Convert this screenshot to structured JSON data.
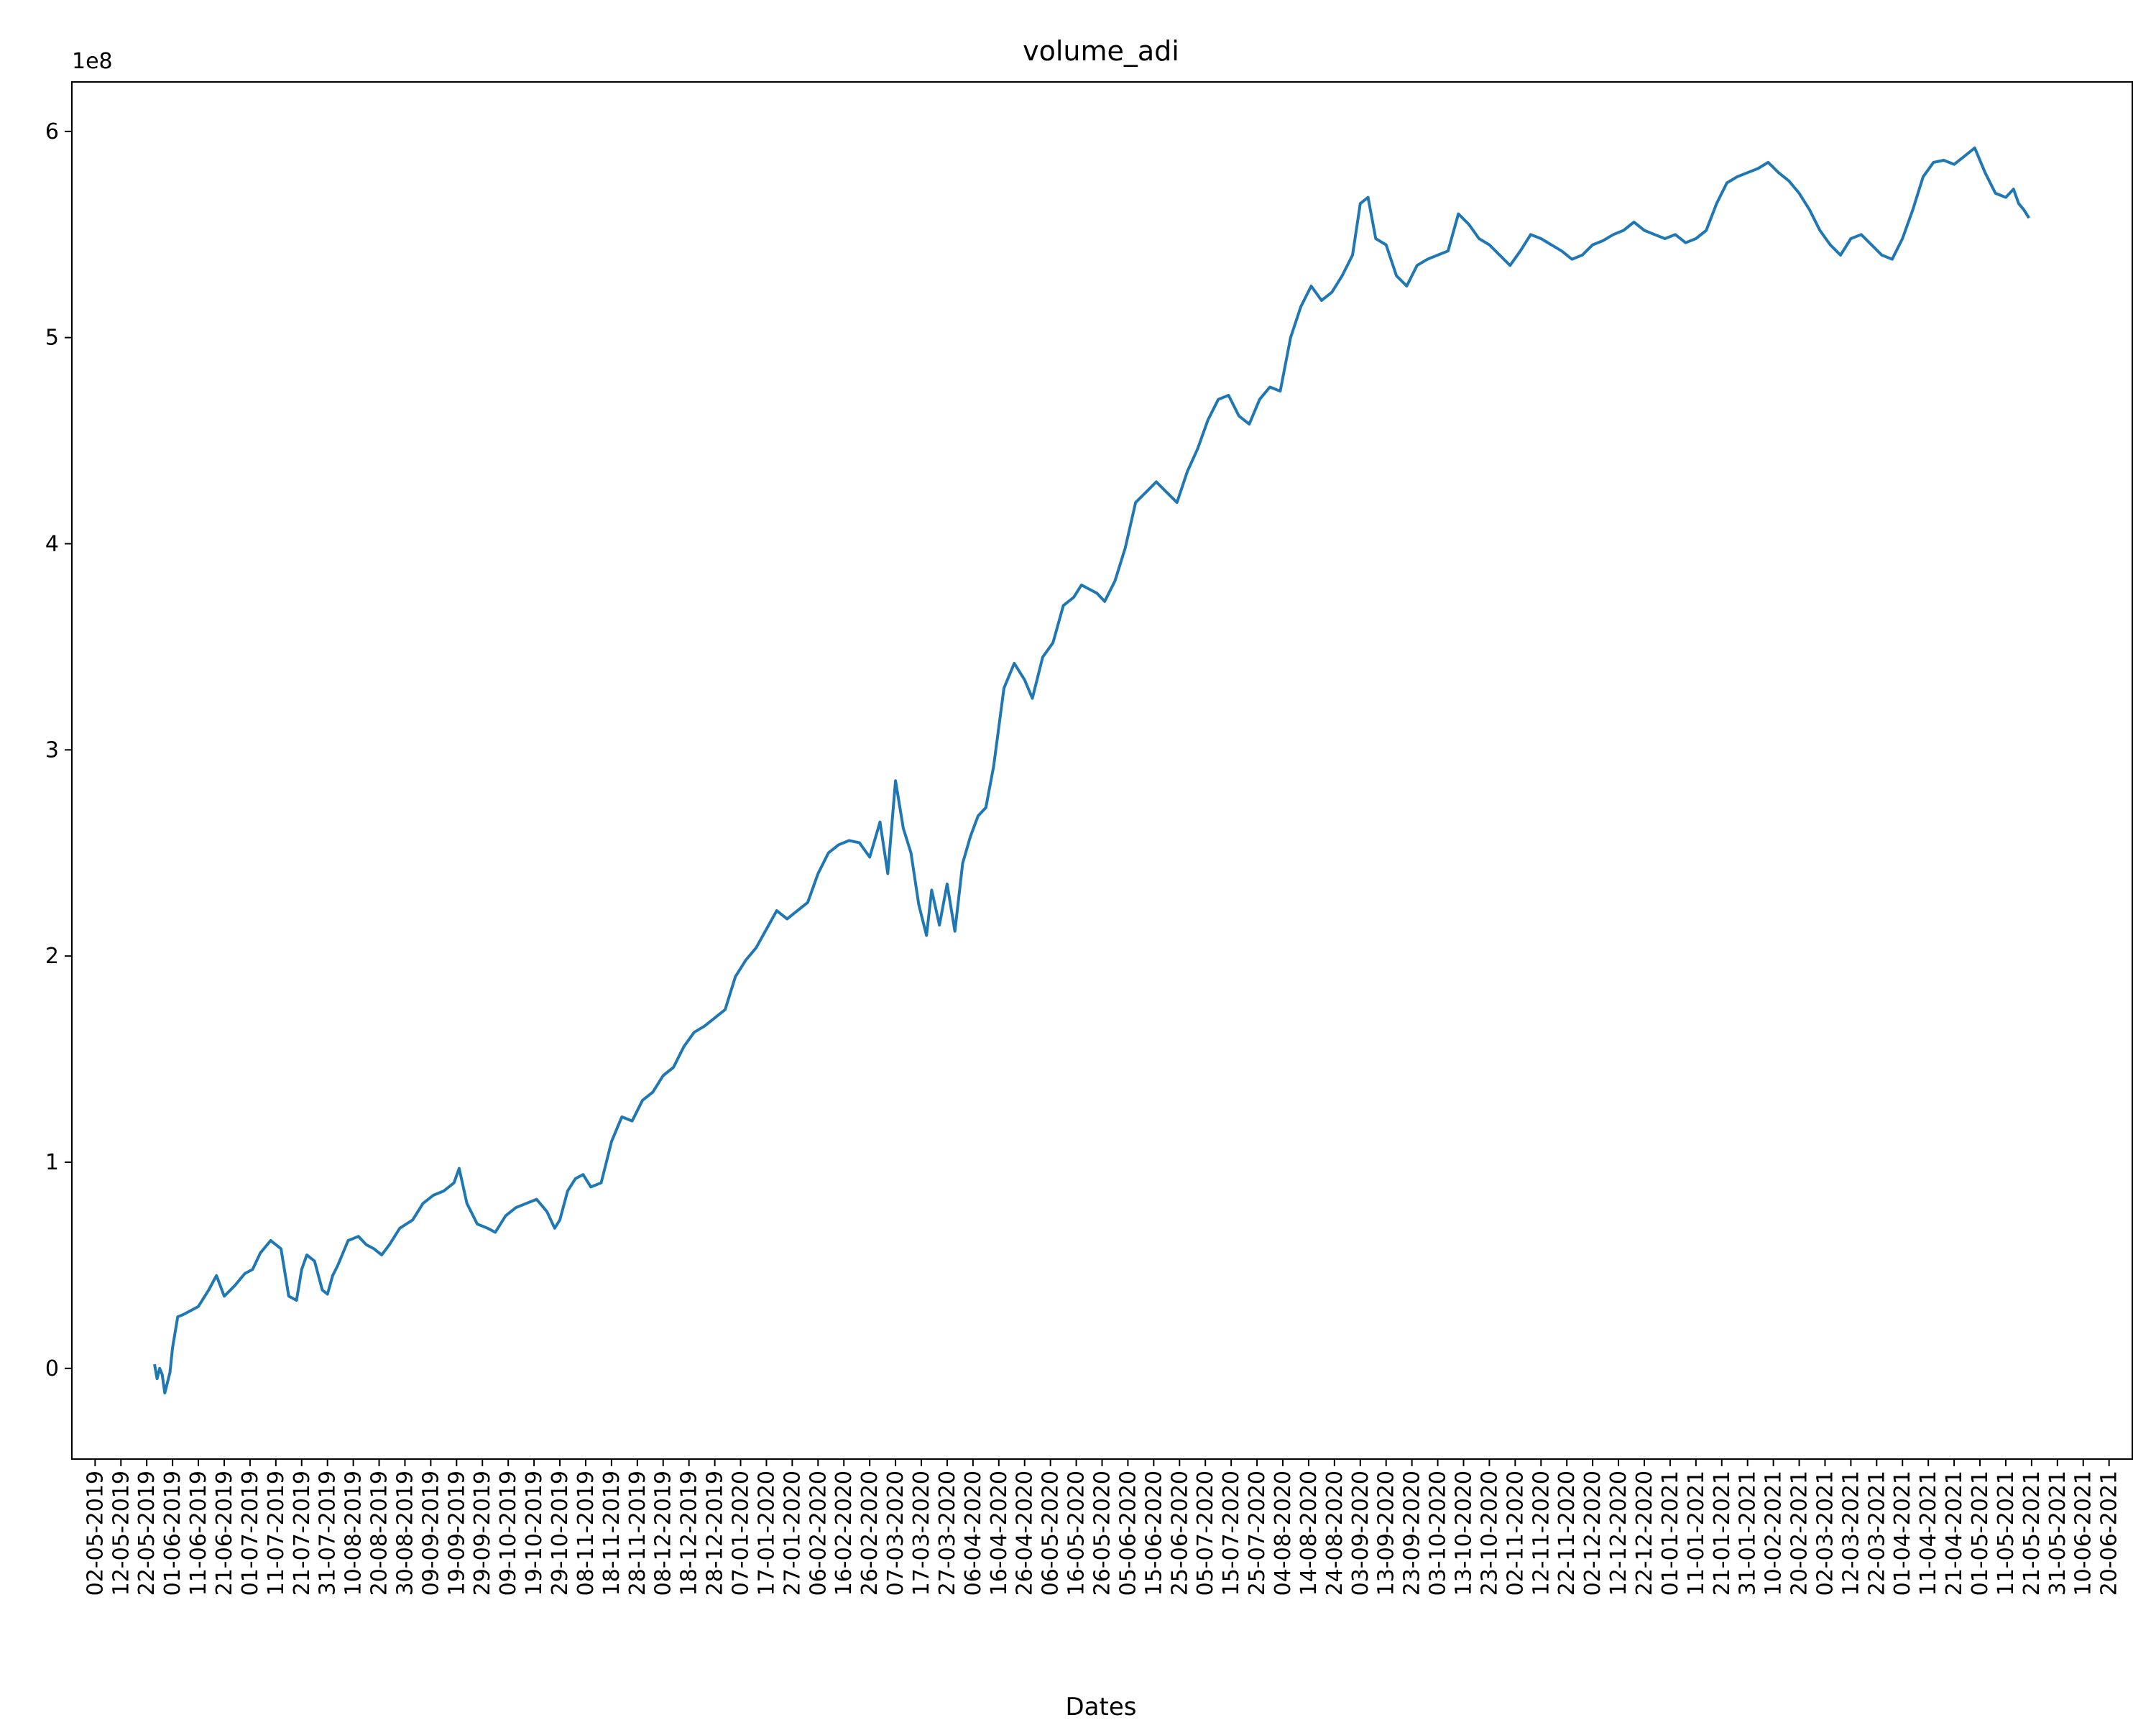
{
  "chart_data": {
    "type": "line",
    "title": "volume_adi",
    "xlabel": "Dates",
    "ylabel": "",
    "y_offset_label": "1e8",
    "y_scale": 100000000,
    "ylim": [
      -44000000,
      624000000
    ],
    "xlim": [
      "2019-04-23",
      "2021-06-29"
    ],
    "grid": false,
    "legend": "none",
    "line_color": "#1f77b4",
    "y_ticks": [
      0,
      100000000,
      200000000,
      300000000,
      400000000,
      500000000,
      600000000
    ],
    "y_tick_labels": [
      "0",
      "1",
      "2",
      "3",
      "4",
      "5",
      "6"
    ],
    "x_ticks": [
      "2019-05-02",
      "2019-05-12",
      "2019-05-22",
      "2019-06-01",
      "2019-06-11",
      "2019-06-21",
      "2019-07-01",
      "2019-07-11",
      "2019-07-21",
      "2019-07-31",
      "2019-08-10",
      "2019-08-20",
      "2019-08-30",
      "2019-09-09",
      "2019-09-19",
      "2019-09-29",
      "2019-10-09",
      "2019-10-19",
      "2019-10-29",
      "2019-11-08",
      "2019-11-18",
      "2019-11-28",
      "2019-12-08",
      "2019-12-18",
      "2019-12-28",
      "2020-01-07",
      "2020-01-17",
      "2020-01-27",
      "2020-02-06",
      "2020-02-16",
      "2020-02-26",
      "2020-03-07",
      "2020-03-17",
      "2020-03-27",
      "2020-04-06",
      "2020-04-16",
      "2020-04-26",
      "2020-05-06",
      "2020-05-16",
      "2020-05-26",
      "2020-06-05",
      "2020-06-15",
      "2020-06-25",
      "2020-07-05",
      "2020-07-15",
      "2020-07-25",
      "2020-08-04",
      "2020-08-14",
      "2020-08-24",
      "2020-09-03",
      "2020-09-13",
      "2020-09-23",
      "2020-10-03",
      "2020-10-13",
      "2020-10-23",
      "2020-11-02",
      "2020-11-12",
      "2020-11-22",
      "2020-12-02",
      "2020-12-12",
      "2020-12-22",
      "2021-01-01",
      "2021-01-11",
      "2021-01-21",
      "2021-01-31",
      "2021-02-10",
      "2021-02-20",
      "2021-03-02",
      "2021-03-12",
      "2021-03-22",
      "2021-04-01",
      "2021-04-11",
      "2021-04-21",
      "2021-05-01",
      "2021-05-11",
      "2021-05-21",
      "2021-05-31",
      "2021-06-10",
      "2021-06-20"
    ],
    "x_tick_labels": [
      "02-05-2019",
      "12-05-2019",
      "22-05-2019",
      "01-06-2019",
      "11-06-2019",
      "21-06-2019",
      "01-07-2019",
      "11-07-2019",
      "21-07-2019",
      "31-07-2019",
      "10-08-2019",
      "20-08-2019",
      "30-08-2019",
      "09-09-2019",
      "19-09-2019",
      "29-09-2019",
      "09-10-2019",
      "19-10-2019",
      "29-10-2019",
      "08-11-2019",
      "18-11-2019",
      "28-11-2019",
      "08-12-2019",
      "18-12-2019",
      "28-12-2019",
      "07-01-2020",
      "17-01-2020",
      "27-01-2020",
      "06-02-2020",
      "16-02-2020",
      "26-02-2020",
      "07-03-2020",
      "17-03-2020",
      "27-03-2020",
      "06-04-2020",
      "16-04-2020",
      "26-04-2020",
      "06-05-2020",
      "16-05-2020",
      "26-05-2020",
      "05-06-2020",
      "15-06-2020",
      "25-06-2020",
      "05-07-2020",
      "15-07-2020",
      "25-07-2020",
      "04-08-2020",
      "14-08-2020",
      "24-08-2020",
      "03-09-2020",
      "13-09-2020",
      "23-09-2020",
      "03-10-2020",
      "13-10-2020",
      "23-10-2020",
      "02-11-2020",
      "12-11-2020",
      "22-11-2020",
      "02-12-2020",
      "12-12-2020",
      "22-12-2020",
      "01-01-2021",
      "11-01-2021",
      "21-01-2021",
      "31-01-2021",
      "10-02-2021",
      "20-02-2021",
      "02-03-2021",
      "12-03-2021",
      "22-03-2021",
      "01-04-2021",
      "11-04-2021",
      "21-04-2021",
      "01-05-2021",
      "11-05-2021",
      "21-05-2021",
      "31-05-2021",
      "10-06-2021",
      "20-06-2021"
    ],
    "series": [
      {
        "x": [
          "2019-05-25",
          "2019-05-26",
          "2019-05-27",
          "2019-05-28",
          "2019-05-29",
          "2019-05-31",
          "2019-06-01",
          "2019-06-03",
          "2019-06-05",
          "2019-06-08",
          "2019-06-11",
          "2019-06-15",
          "2019-06-18",
          "2019-06-21",
          "2019-06-25",
          "2019-06-29",
          "2019-07-02",
          "2019-07-05",
          "2019-07-09",
          "2019-07-13",
          "2019-07-16",
          "2019-07-19",
          "2019-07-21",
          "2019-07-23",
          "2019-07-26",
          "2019-07-29",
          "2019-07-31",
          "2019-08-02",
          "2019-08-04",
          "2019-08-08",
          "2019-08-12",
          "2019-08-15",
          "2019-08-18",
          "2019-08-21",
          "2019-08-24",
          "2019-08-28",
          "2019-09-02",
          "2019-09-06",
          "2019-09-10",
          "2019-09-14",
          "2019-09-18",
          "2019-09-20",
          "2019-09-23",
          "2019-09-27",
          "2019-10-01",
          "2019-10-04",
          "2019-10-08",
          "2019-10-12",
          "2019-10-16",
          "2019-10-20",
          "2019-10-24",
          "2019-10-27",
          "2019-10-29",
          "2019-11-01",
          "2019-11-04",
          "2019-11-07",
          "2019-11-10",
          "2019-11-14",
          "2019-11-18",
          "2019-11-22",
          "2019-11-26",
          "2019-11-30",
          "2019-12-04",
          "2019-12-08",
          "2019-12-12",
          "2019-12-16",
          "2019-12-20",
          "2019-12-24",
          "2019-12-28",
          "2020-01-01",
          "2020-01-05",
          "2020-01-09",
          "2020-01-13",
          "2020-01-17",
          "2020-01-21",
          "2020-01-25",
          "2020-01-29",
          "2020-02-02",
          "2020-02-06",
          "2020-02-10",
          "2020-02-14",
          "2020-02-18",
          "2020-02-22",
          "2020-02-26",
          "2020-03-01",
          "2020-03-04",
          "2020-03-07",
          "2020-03-10",
          "2020-03-13",
          "2020-03-16",
          "2020-03-19",
          "2020-03-21",
          "2020-03-24",
          "2020-03-27",
          "2020-03-30",
          "2020-04-02",
          "2020-04-05",
          "2020-04-08",
          "2020-04-11",
          "2020-04-14",
          "2020-04-18",
          "2020-04-22",
          "2020-04-26",
          "2020-04-29",
          "2020-05-03",
          "2020-05-07",
          "2020-05-11",
          "2020-05-15",
          "2020-05-18",
          "2020-05-21",
          "2020-05-24",
          "2020-05-27",
          "2020-05-31",
          "2020-06-04",
          "2020-06-08",
          "2020-06-12",
          "2020-06-16",
          "2020-06-20",
          "2020-06-24",
          "2020-06-28",
          "2020-07-02",
          "2020-07-06",
          "2020-07-10",
          "2020-07-14",
          "2020-07-18",
          "2020-07-22",
          "2020-07-26",
          "2020-07-30",
          "2020-08-03",
          "2020-08-07",
          "2020-08-11",
          "2020-08-15",
          "2020-08-19",
          "2020-08-23",
          "2020-08-27",
          "2020-08-31",
          "2020-09-03",
          "2020-09-06",
          "2020-09-09",
          "2020-09-13",
          "2020-09-17",
          "2020-09-21",
          "2020-09-25",
          "2020-09-29",
          "2020-10-03",
          "2020-10-07",
          "2020-10-11",
          "2020-10-15",
          "2020-10-19",
          "2020-10-23",
          "2020-10-27",
          "2020-10-31",
          "2020-11-04",
          "2020-11-08",
          "2020-11-12",
          "2020-11-16",
          "2020-11-20",
          "2020-11-24",
          "2020-11-28",
          "2020-12-02",
          "2020-12-06",
          "2020-12-10",
          "2020-12-14",
          "2020-12-18",
          "2020-12-22",
          "2020-12-26",
          "2020-12-30",
          "2021-01-03",
          "2021-01-07",
          "2021-01-11",
          "2021-01-15",
          "2021-01-19",
          "2021-01-23",
          "2021-01-27",
          "2021-01-31",
          "2021-02-04",
          "2021-02-08",
          "2021-02-12",
          "2021-02-16",
          "2021-02-20",
          "2021-02-24",
          "2021-02-28",
          "2021-03-04",
          "2021-03-08",
          "2021-03-12",
          "2021-03-16",
          "2021-03-20",
          "2021-03-24",
          "2021-03-28",
          "2021-04-01",
          "2021-04-05",
          "2021-04-09",
          "2021-04-13",
          "2021-04-17",
          "2021-04-21",
          "2021-04-25",
          "2021-04-29",
          "2021-05-03",
          "2021-05-07",
          "2021-05-11",
          "2021-05-14",
          "2021-05-16",
          "2021-05-18",
          "2021-05-20"
        ],
        "y": [
          2000000,
          -5000000,
          0,
          -3000000,
          -12000000,
          -2000000,
          10000000,
          25000000,
          26000000,
          28000000,
          30000000,
          38000000,
          45000000,
          35000000,
          40000000,
          46000000,
          48000000,
          56000000,
          62000000,
          58000000,
          35000000,
          33000000,
          48000000,
          55000000,
          52000000,
          38000000,
          36000000,
          45000000,
          50000000,
          62000000,
          64000000,
          60000000,
          58000000,
          55000000,
          60000000,
          68000000,
          72000000,
          80000000,
          84000000,
          86000000,
          90000000,
          97000000,
          80000000,
          70000000,
          68000000,
          66000000,
          74000000,
          78000000,
          80000000,
          82000000,
          76000000,
          68000000,
          72000000,
          86000000,
          92000000,
          94000000,
          88000000,
          90000000,
          110000000,
          122000000,
          120000000,
          130000000,
          134000000,
          142000000,
          146000000,
          156000000,
          163000000,
          166000000,
          170000000,
          174000000,
          190000000,
          198000000,
          204000000,
          213000000,
          222000000,
          218000000,
          222000000,
          226000000,
          240000000,
          250000000,
          254000000,
          256000000,
          255000000,
          248000000,
          265000000,
          240000000,
          285000000,
          262000000,
          250000000,
          225000000,
          210000000,
          232000000,
          215000000,
          235000000,
          212000000,
          245000000,
          258000000,
          268000000,
          272000000,
          292000000,
          330000000,
          342000000,
          334000000,
          325000000,
          345000000,
          352000000,
          370000000,
          374000000,
          380000000,
          378000000,
          376000000,
          372000000,
          382000000,
          398000000,
          420000000,
          425000000,
          430000000,
          425000000,
          420000000,
          435000000,
          446000000,
          460000000,
          470000000,
          472000000,
          462000000,
          458000000,
          470000000,
          476000000,
          474000000,
          500000000,
          515000000,
          525000000,
          518000000,
          522000000,
          530000000,
          540000000,
          565000000,
          568000000,
          548000000,
          545000000,
          530000000,
          525000000,
          535000000,
          538000000,
          540000000,
          542000000,
          560000000,
          555000000,
          548000000,
          545000000,
          540000000,
          535000000,
          542000000,
          550000000,
          548000000,
          545000000,
          542000000,
          538000000,
          540000000,
          545000000,
          547000000,
          550000000,
          552000000,
          556000000,
          552000000,
          550000000,
          548000000,
          550000000,
          546000000,
          548000000,
          552000000,
          565000000,
          575000000,
          578000000,
          580000000,
          582000000,
          585000000,
          580000000,
          576000000,
          570000000,
          562000000,
          552000000,
          545000000,
          540000000,
          548000000,
          550000000,
          545000000,
          540000000,
          538000000,
          548000000,
          562000000,
          578000000,
          585000000,
          586000000,
          584000000,
          588000000,
          592000000,
          580000000,
          570000000,
          568000000,
          572000000,
          565000000,
          562000000,
          558000000
        ]
      }
    ]
  }
}
